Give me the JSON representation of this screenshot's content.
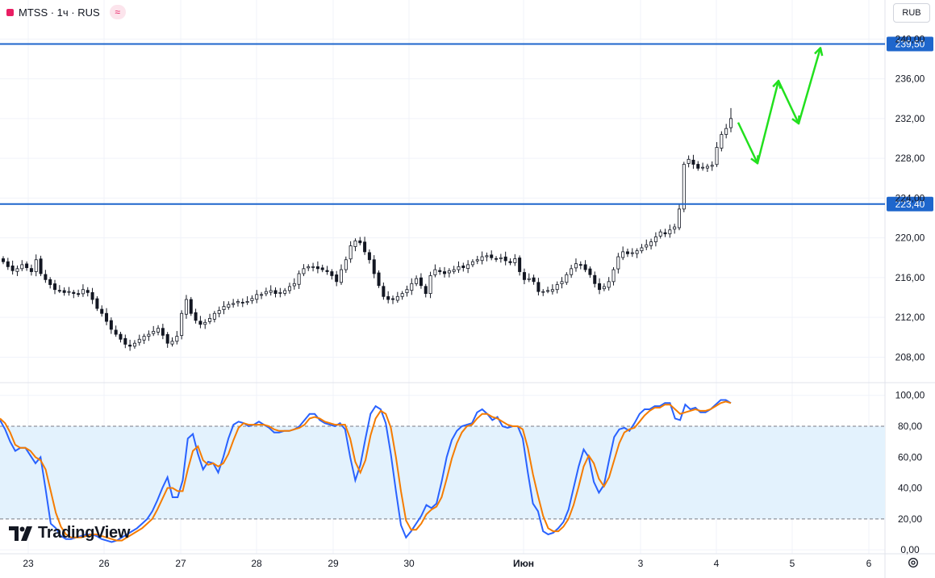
{
  "header": {
    "symbol_line": "MTSS · 1ч · RUS",
    "badge": "≈",
    "currency": "RUB"
  },
  "logo": {
    "text": "TradingView"
  },
  "colors": {
    "candle": "#131722",
    "level_line": "#1e66cc",
    "forecast": "#22e01e",
    "k_line": "#2962ff",
    "d_line": "#f57c00",
    "band_fill": "#e3f2fd"
  },
  "chart_data": [
    {
      "type": "candlestick",
      "title": "MTSS · 1ч · RUS",
      "ylim": [
        205.6,
        241.0
      ],
      "y_ticks": [
        "240,00",
        "236,00",
        "232,00",
        "228,00",
        "224,00",
        "220,00",
        "216,00",
        "212,00",
        "208,00"
      ],
      "x_ticks": [
        "23",
        "26",
        "27",
        "28",
        "29",
        "30",
        "Июн",
        "3",
        "4",
        "5",
        "6"
      ],
      "levels": [
        {
          "value": 239.5,
          "label": "239,50"
        },
        {
          "value": 223.4,
          "label": "223,40"
        }
      ],
      "forecast_path": [
        {
          "x": "4 (+0.3)",
          "y": 231.6
        },
        {
          "x": "4 (+0.55)",
          "y": 227.5
        },
        {
          "x": "5 (-0.2)",
          "y": 235.8
        },
        {
          "x": "5 (+0.1)",
          "y": 231.5
        },
        {
          "x": "5 (+0.4)",
          "y": 239.1
        }
      ],
      "price_path": [
        217.6,
        217.1,
        216.7,
        216.9,
        217.3,
        217.0,
        216.6,
        217.8,
        216.4,
        215.8,
        215.3,
        214.8,
        214.7,
        214.5,
        214.6,
        214.4,
        214.3,
        214.8,
        214.5,
        213.8,
        212.9,
        212.4,
        211.6,
        210.8,
        210.3,
        209.8,
        209.3,
        209.1,
        209.4,
        209.8,
        210.1,
        210.3,
        210.6,
        210.9,
        210.2,
        209.4,
        209.6,
        210.1,
        212.4,
        213.8,
        212.4,
        211.7,
        211.3,
        211.5,
        211.9,
        212.4,
        212.7,
        213.1,
        213.3,
        213.4,
        213.6,
        213.5,
        213.6,
        213.9,
        214.3,
        214.3,
        214.6,
        214.7,
        214.4,
        214.5,
        214.7,
        215.1,
        215.4,
        216.4,
        216.9,
        217.1,
        217.1,
        216.9,
        216.8,
        216.6,
        216.2,
        215.6,
        216.8,
        217.8,
        219.2,
        219.7,
        219.5,
        218.6,
        217.8,
        216.4,
        215.2,
        214.1,
        213.8,
        213.8,
        214.1,
        214.4,
        214.8,
        215.4,
        215.9,
        215.2,
        214.4,
        216.2,
        216.8,
        216.6,
        216.4,
        216.7,
        216.8,
        217.1,
        217.0,
        217.3,
        217.6,
        217.8,
        218.1,
        218.2,
        218.0,
        217.9,
        218.0,
        217.7,
        217.5,
        217.9,
        216.6,
        215.8,
        215.9,
        215.6,
        214.6,
        214.6,
        214.7,
        214.8,
        215.3,
        215.6,
        216.3,
        216.9,
        217.4,
        217.3,
        216.8,
        216.3,
        215.4,
        214.8,
        215.1,
        215.6,
        216.8,
        218.1,
        218.6,
        218.4,
        218.5,
        218.7,
        219.0,
        219.3,
        219.6,
        220.1,
        220.6,
        220.4,
        220.8,
        221.1,
        222.9,
        227.4,
        227.9,
        227.4,
        227.0,
        227.1,
        227.2,
        227.3,
        229.1,
        230.4,
        231.0,
        232.0
      ]
    },
    {
      "type": "line",
      "ylim": [
        -1,
        103
      ],
      "y_ticks": [
        "100,00",
        "80,00",
        "60,00",
        "40,00",
        "20,00",
        "0,00"
      ],
      "band": [
        20,
        80
      ],
      "series": [
        {
          "name": "%K",
          "color": "#2962ff",
          "values": [
            84,
            78,
            70,
            64,
            66,
            66,
            61,
            56,
            60,
            39,
            17,
            14,
            9,
            7,
            7,
            8,
            9,
            10,
            10,
            9,
            7,
            6,
            5,
            6,
            8,
            10,
            12,
            14,
            17,
            20,
            25,
            32,
            40,
            47,
            34,
            34,
            45,
            72,
            75,
            62,
            52,
            57,
            56,
            50,
            60,
            72,
            81,
            83,
            82,
            80,
            81,
            83,
            81,
            79,
            76,
            76,
            77,
            77,
            78,
            80,
            84,
            88,
            88,
            84,
            82,
            81,
            80,
            82,
            78,
            60,
            45,
            55,
            72,
            88,
            93,
            91,
            82,
            62,
            38,
            16,
            8,
            12,
            17,
            22,
            29,
            27,
            30,
            44,
            60,
            71,
            77,
            80,
            81,
            82,
            89,
            91,
            88,
            84,
            86,
            80,
            79,
            80,
            80,
            72,
            50,
            30,
            25,
            12,
            10,
            11,
            14,
            18,
            26,
            40,
            54,
            65,
            60,
            44,
            37,
            42,
            58,
            73,
            78,
            79,
            77,
            82,
            88,
            91,
            91,
            93,
            93,
            95,
            95,
            85,
            84,
            94,
            91,
            92,
            89,
            89,
            91,
            94,
            97,
            97,
            95
          ]
        },
        {
          "name": "%D",
          "color": "#f57c00",
          "values": [
            85,
            82,
            76,
            68,
            66,
            66,
            64,
            60,
            58,
            52,
            38,
            24,
            15,
            10,
            8,
            8,
            8,
            9,
            10,
            10,
            9,
            8,
            7,
            6,
            6,
            8,
            10,
            12,
            14,
            17,
            20,
            26,
            33,
            40,
            40,
            38,
            38,
            52,
            64,
            67,
            58,
            55,
            56,
            54,
            56,
            62,
            71,
            79,
            82,
            81,
            81,
            81,
            81,
            80,
            78,
            77,
            77,
            77,
            78,
            79,
            81,
            85,
            86,
            85,
            83,
            82,
            81,
            81,
            81,
            72,
            57,
            50,
            58,
            74,
            85,
            90,
            88,
            79,
            60,
            38,
            19,
            13,
            13,
            17,
            23,
            26,
            28,
            34,
            46,
            59,
            69,
            76,
            80,
            81,
            85,
            88,
            88,
            86,
            85,
            83,
            81,
            80,
            80,
            78,
            66,
            49,
            35,
            22,
            14,
            12,
            12,
            15,
            20,
            29,
            41,
            54,
            61,
            56,
            46,
            41,
            47,
            58,
            69,
            76,
            78,
            79,
            83,
            87,
            90,
            92,
            92,
            94,
            94,
            91,
            88,
            89,
            90,
            91,
            90,
            90,
            91,
            93,
            95,
            96,
            95
          ]
        }
      ]
    }
  ]
}
